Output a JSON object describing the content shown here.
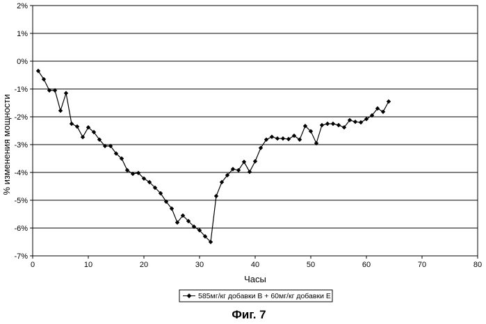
{
  "figure_caption": "Фиг. 7",
  "chart_data": {
    "type": "line",
    "xlabel": "Часы",
    "ylabel": "% изменения мощности",
    "xlim": [
      0,
      80
    ],
    "ylim": [
      -7,
      2
    ],
    "x_ticks": [
      0,
      10,
      20,
      30,
      40,
      50,
      60,
      70,
      80
    ],
    "x_tick_labels": [
      "0",
      "10",
      "20",
      "30",
      "40",
      "50",
      "60",
      "70",
      "80"
    ],
    "y_ticks": [
      2,
      1,
      0,
      -1,
      -2,
      -3,
      -4,
      -5,
      -6,
      -7
    ],
    "y_tick_labels": [
      "2%",
      "1%",
      "0%",
      "-1%",
      "-2%",
      "-3%",
      "-4%",
      "-5%",
      "-6%",
      "-7%"
    ],
    "grid": "horizontal",
    "legend_position": "bottom",
    "series": [
      {
        "name": "585мг/кг добавки В + 60мг/кг добавки Е",
        "color": "#000000",
        "marker": "diamond",
        "x": [
          1,
          2,
          3,
          4,
          5,
          6,
          7,
          8,
          9,
          10,
          11,
          12,
          13,
          14,
          15,
          16,
          17,
          18,
          19,
          20,
          21,
          22,
          23,
          24,
          25,
          26,
          27,
          28,
          29,
          30,
          31,
          32,
          33,
          34,
          35,
          36,
          37,
          38,
          39,
          40,
          41,
          42,
          43,
          44,
          45,
          46,
          47,
          48,
          49,
          50,
          51,
          52,
          53,
          54,
          55,
          56,
          57,
          58,
          59,
          60,
          61,
          62,
          63,
          64
        ],
        "y": [
          -0.35,
          -0.65,
          -1.05,
          -1.05,
          -1.78,
          -1.15,
          -2.25,
          -2.35,
          -2.73,
          -2.38,
          -2.55,
          -2.82,
          -3.05,
          -3.05,
          -3.32,
          -3.5,
          -3.92,
          -4.05,
          -4.02,
          -4.22,
          -4.35,
          -4.55,
          -4.75,
          -5.05,
          -5.3,
          -5.8,
          -5.55,
          -5.75,
          -5.95,
          -6.08,
          -6.3,
          -6.5,
          -4.85,
          -4.35,
          -4.1,
          -3.88,
          -3.92,
          -3.62,
          -3.98,
          -3.6,
          -3.12,
          -2.82,
          -2.72,
          -2.78,
          -2.78,
          -2.8,
          -2.68,
          -2.82,
          -2.33,
          -2.52,
          -2.95,
          -2.3,
          -2.25,
          -2.25,
          -2.3,
          -2.38,
          -2.12,
          -2.18,
          -2.2,
          -2.08,
          -1.95,
          -1.7,
          -1.82,
          -1.45
        ]
      }
    ]
  }
}
